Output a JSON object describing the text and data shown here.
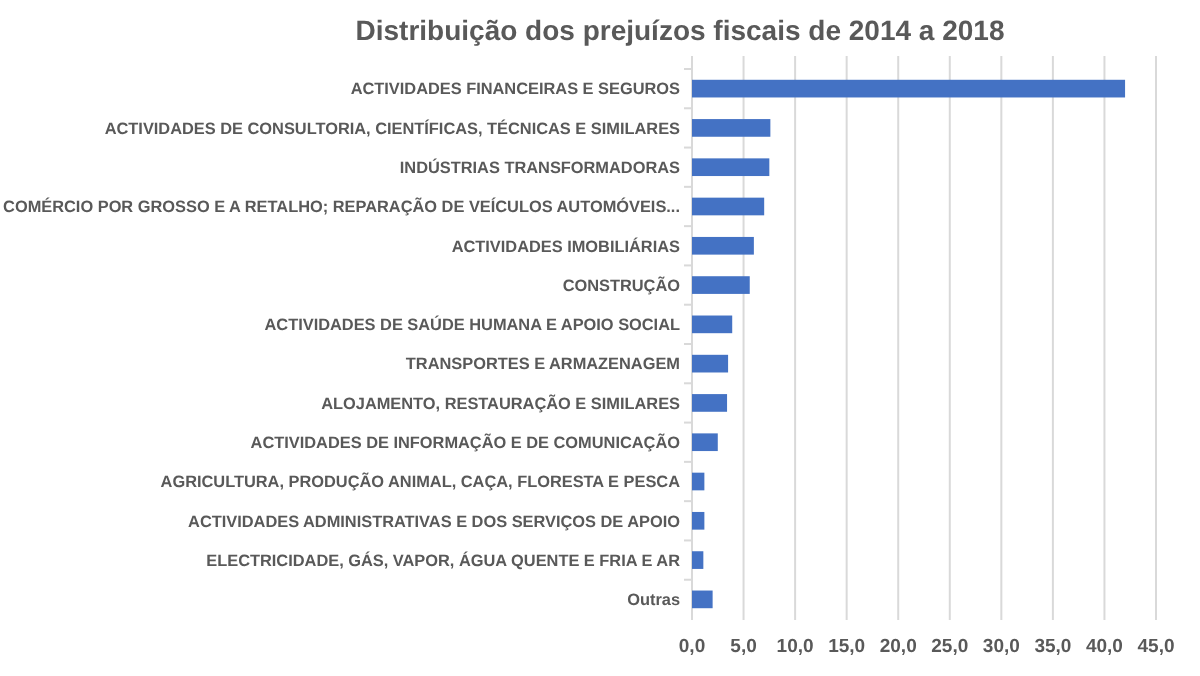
{
  "chart_data": {
    "type": "bar",
    "orientation": "horizontal",
    "title": "Distribuição dos prejuízos fiscais de 2014 a 2018",
    "categories": [
      "ACTIVIDADES FINANCEIRAS E SEGUROS",
      "ACTIVIDADES DE CONSULTORIA, CIENTÍFICAS, TÉCNICAS E SIMILARES",
      "INDÚSTRIAS TRANSFORMADORAS",
      "COMÉRCIO POR GROSSO E A RETALHO; REPARAÇÃO DE VEÍCULOS AUTOMÓVEIS...",
      "ACTIVIDADES IMOBILIÁRIAS",
      "CONSTRUÇÃO",
      "ACTIVIDADES DE SAÚDE HUMANA E APOIO SOCIAL",
      "TRANSPORTES E ARMAZENAGEM",
      "ALOJAMENTO, RESTAURAÇÃO E SIMILARES",
      "ACTIVIDADES DE INFORMAÇÃO E DE COMUNICAÇÃO",
      "AGRICULTURA, PRODUÇÃO ANIMAL, CAÇA, FLORESTA E PESCA",
      "ACTIVIDADES ADMINISTRATIVAS E DOS SERVIÇOS DE APOIO",
      "ELECTRICIDADE, GÁS, VAPOR, ÁGUA QUENTE E FRIA E AR",
      "Outras"
    ],
    "values": [
      42,
      7.6,
      7.5,
      7.0,
      6.0,
      5.6,
      3.9,
      3.5,
      3.4,
      2.5,
      1.2,
      1.2,
      1.1,
      2.0
    ],
    "color": "#4472c4",
    "xlim": [
      0,
      45
    ],
    "xticks": [
      {
        "value": 0,
        "label": "0,0"
      },
      {
        "value": 5,
        "label": "5,0"
      },
      {
        "value": 10,
        "label": "10,0"
      },
      {
        "value": 15,
        "label": "15,0"
      },
      {
        "value": 20,
        "label": "20,0"
      },
      {
        "value": 25,
        "label": "25,0"
      },
      {
        "value": 30,
        "label": "30,0"
      },
      {
        "value": 35,
        "label": "35,0"
      },
      {
        "value": 40,
        "label": "40,0"
      },
      {
        "value": 45,
        "label": "45,0"
      }
    ],
    "grid": "x"
  }
}
